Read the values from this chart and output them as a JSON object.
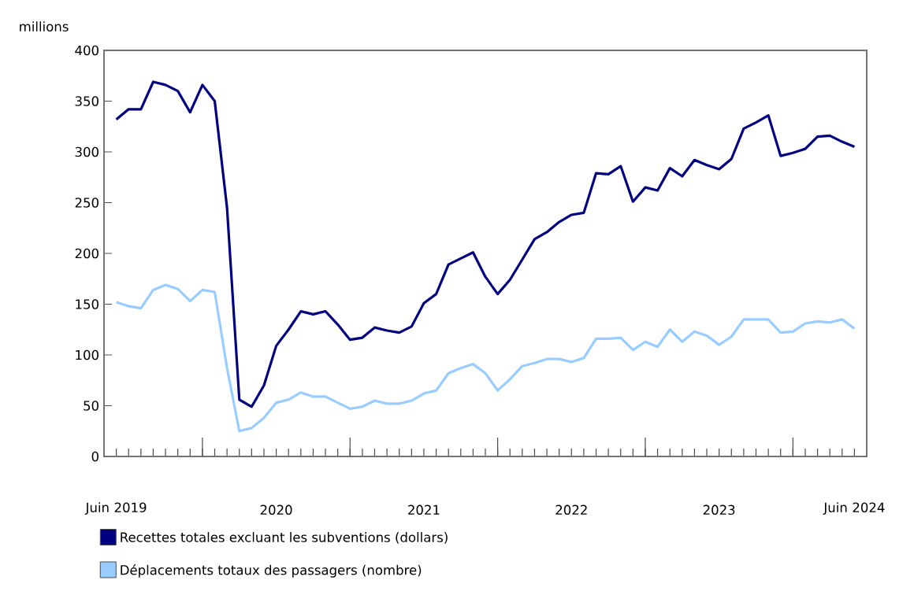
{
  "chart_data": {
    "type": "line",
    "ylabel": "millions",
    "x": [
      "2019-06",
      "2019-07",
      "2019-08",
      "2019-09",
      "2019-10",
      "2019-11",
      "2019-12",
      "2020-01",
      "2020-02",
      "2020-03",
      "2020-04",
      "2020-05",
      "2020-06",
      "2020-07",
      "2020-08",
      "2020-09",
      "2020-10",
      "2020-11",
      "2020-12",
      "2021-01",
      "2021-02",
      "2021-03",
      "2021-04",
      "2021-05",
      "2021-06",
      "2021-07",
      "2021-08",
      "2021-09",
      "2021-10",
      "2021-11",
      "2021-12",
      "2022-01",
      "2022-02",
      "2022-03",
      "2022-04",
      "2022-05",
      "2022-06",
      "2022-07",
      "2022-08",
      "2022-09",
      "2022-10",
      "2022-11",
      "2022-12",
      "2023-01",
      "2023-02",
      "2023-03",
      "2023-04",
      "2023-05",
      "2023-06",
      "2023-07",
      "2023-08",
      "2023-09",
      "2023-10",
      "2023-11",
      "2023-12",
      "2024-01",
      "2024-02",
      "2024-03",
      "2024-04",
      "2024-05",
      "2024-06"
    ],
    "series": [
      {
        "name": "Recettes totales excluant les subventions (dollars)",
        "color": "#000080",
        "values": [
          332,
          342,
          342,
          369,
          366,
          360,
          339,
          366,
          350,
          245,
          56,
          49,
          70,
          109,
          125,
          143,
          140,
          143,
          130,
          115,
          117,
          127,
          124,
          122,
          128,
          151,
          160,
          189,
          195,
          201,
          177,
          160,
          174,
          194,
          214,
          221,
          231,
          238,
          240,
          279,
          278,
          286,
          251,
          265,
          262,
          284,
          276,
          292,
          287,
          283,
          293,
          323,
          329,
          336,
          296,
          299,
          303,
          315,
          316,
          310,
          305
        ]
      },
      {
        "name": "Déplacements totaux des passagers (nombre)",
        "color": "#99ccff",
        "values": [
          152,
          148,
          146,
          164,
          169,
          165,
          153,
          164,
          162,
          87,
          25,
          28,
          38,
          53,
          56,
          63,
          59,
          59,
          53,
          47,
          49,
          55,
          52,
          52,
          55,
          62,
          65,
          82,
          87,
          91,
          82,
          65,
          76,
          89,
          92,
          96,
          96,
          93,
          97,
          116,
          116,
          117,
          105,
          113,
          108,
          125,
          113,
          123,
          119,
          110,
          118,
          135,
          135,
          135,
          122,
          123,
          131,
          133,
          132,
          135,
          126
        ]
      }
    ],
    "xlim": [
      "2019-05",
      "2024-07"
    ],
    "ylim": [
      0,
      400
    ],
    "xticks": [
      {
        "value": "2019-06",
        "label": "Juin 2019"
      },
      {
        "value": "2020-01",
        "label": null
      },
      {
        "value": "2020-07",
        "label": "2020"
      },
      {
        "value": "2021-01",
        "label": null
      },
      {
        "value": "2021-07",
        "label": "2021"
      },
      {
        "value": "2022-01",
        "label": null
      },
      {
        "value": "2022-07",
        "label": "2022"
      },
      {
        "value": "2023-01",
        "label": null
      },
      {
        "value": "2023-07",
        "label": "2023"
      },
      {
        "value": "2024-01",
        "label": null
      },
      {
        "value": "2024-06",
        "label": "Juin 2024"
      }
    ],
    "yticks": [
      0,
      50,
      100,
      150,
      200,
      250,
      300,
      350,
      400
    ],
    "legend": "bottom"
  }
}
